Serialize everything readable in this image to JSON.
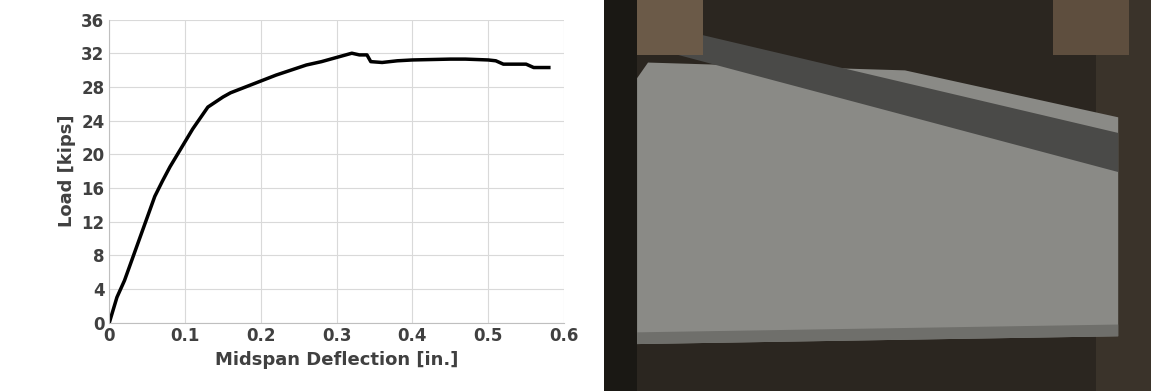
{
  "chart_data": {
    "type": "line",
    "x_label": "Midspan Deflection [in.]",
    "y_label": "Load [kips]",
    "x": [
      0,
      0.005,
      0.01,
      0.02,
      0.03,
      0.04,
      0.05,
      0.06,
      0.07,
      0.08,
      0.09,
      0.1,
      0.11,
      0.12,
      0.13,
      0.14,
      0.15,
      0.16,
      0.18,
      0.2,
      0.22,
      0.24,
      0.26,
      0.28,
      0.3,
      0.32,
      0.33,
      0.34,
      0.345,
      0.36,
      0.38,
      0.4,
      0.45,
      0.47,
      0.5,
      0.51,
      0.52,
      0.55,
      0.56,
      0.58
    ],
    "values": [
      0,
      1.5,
      3,
      5,
      7.5,
      10,
      12.5,
      15,
      16.8,
      18.5,
      20,
      21.5,
      23,
      24.3,
      25.6,
      26.2,
      26.8,
      27.3,
      28,
      28.7,
      29.4,
      30,
      30.6,
      31,
      31.5,
      32,
      31.8,
      31.8,
      31,
      30.9,
      31.1,
      31.2,
      31.3,
      31.3,
      31.2,
      31.1,
      30.7,
      30.7,
      30.3,
      30.3
    ],
    "color": "#000000",
    "xlim": [
      0,
      0.6
    ],
    "xticks": [
      0,
      0.1,
      0.2,
      0.3,
      0.4,
      0.5,
      0.6
    ],
    "ylim": [
      0,
      36
    ],
    "yticks": [
      0,
      4,
      8,
      12,
      16,
      20,
      24,
      28,
      32,
      36
    ],
    "grid": true
  }
}
